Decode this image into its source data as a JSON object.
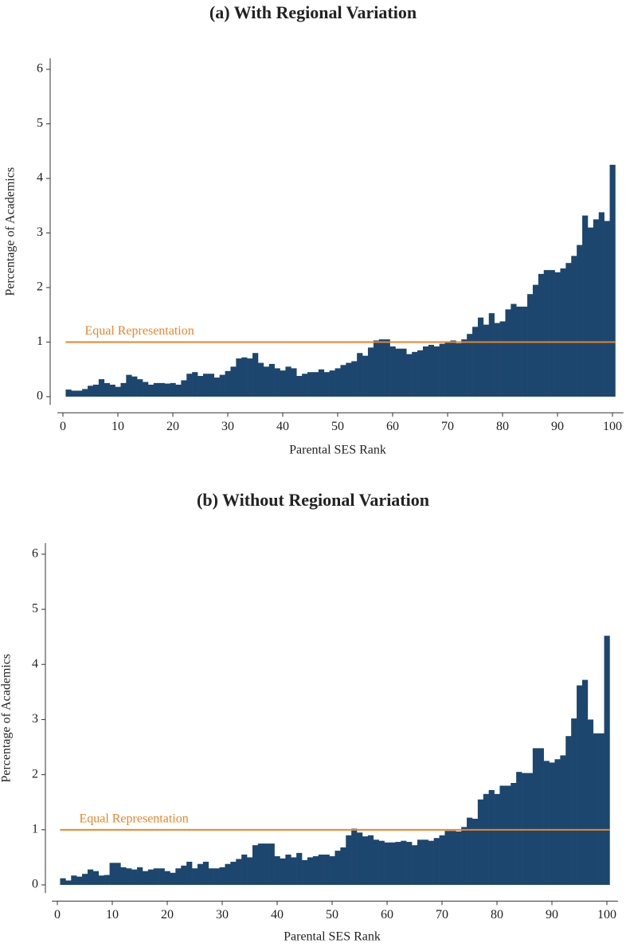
{
  "chart_data": [
    {
      "type": "bar",
      "title": "(a) With Regional Variation",
      "x_label": "Parental SES Rank",
      "y_label": "Percentage of Academics",
      "color": "#1d466e",
      "x": [
        1,
        2,
        3,
        4,
        5,
        6,
        7,
        8,
        9,
        10,
        11,
        12,
        13,
        14,
        15,
        16,
        17,
        18,
        19,
        20,
        21,
        22,
        23,
        24,
        25,
        26,
        27,
        28,
        29,
        30,
        31,
        32,
        33,
        34,
        35,
        36,
        37,
        38,
        39,
        40,
        41,
        42,
        43,
        44,
        45,
        46,
        47,
        48,
        49,
        50,
        51,
        52,
        53,
        54,
        55,
        56,
        57,
        58,
        59,
        60,
        61,
        62,
        63,
        64,
        65,
        66,
        67,
        68,
        69,
        70,
        71,
        72,
        73,
        74,
        75,
        76,
        77,
        78,
        79,
        80,
        81,
        82,
        83,
        84,
        85,
        86,
        87,
        88,
        89,
        90,
        91,
        92,
        93,
        94,
        95,
        96,
        97,
        98,
        99,
        100
      ],
      "values": [
        0.13,
        0.11,
        0.11,
        0.14,
        0.2,
        0.22,
        0.32,
        0.25,
        0.22,
        0.18,
        0.25,
        0.4,
        0.37,
        0.32,
        0.27,
        0.22,
        0.25,
        0.25,
        0.24,
        0.25,
        0.22,
        0.3,
        0.42,
        0.45,
        0.38,
        0.42,
        0.42,
        0.35,
        0.4,
        0.47,
        0.55,
        0.7,
        0.72,
        0.7,
        0.8,
        0.62,
        0.55,
        0.6,
        0.52,
        0.48,
        0.55,
        0.52,
        0.38,
        0.42,
        0.45,
        0.45,
        0.5,
        0.45,
        0.48,
        0.52,
        0.58,
        0.62,
        0.65,
        0.8,
        0.75,
        0.9,
        1.03,
        1.05,
        1.05,
        0.92,
        0.88,
        0.88,
        0.78,
        0.82,
        0.85,
        0.92,
        0.95,
        0.92,
        0.97,
        1.0,
        1.03,
        0.98,
        1.05,
        1.15,
        1.28,
        1.45,
        1.32,
        1.53,
        1.35,
        1.38,
        1.6,
        1.7,
        1.65,
        1.65,
        1.88,
        2.05,
        2.25,
        2.32,
        2.32,
        2.28,
        2.35,
        2.45,
        2.58,
        2.78,
        3.32,
        3.1,
        3.25,
        3.38,
        3.22,
        4.25
      ],
      "reference_line": {
        "value": 1,
        "label": "Equal Representation",
        "color": "#e8862a"
      },
      "xlim": [
        -1,
        102
      ],
      "xticks": [
        0,
        10,
        20,
        30,
        40,
        50,
        60,
        70,
        80,
        90,
        100
      ],
      "ylim": [
        -0.15,
        6.2
      ],
      "yticks": [
        0,
        1,
        2,
        3,
        4,
        5,
        6
      ]
    },
    {
      "type": "bar",
      "title": "(b) Without Regional Variation",
      "x_label": "Parental SES Rank",
      "y_label": "Percentage of Academics",
      "color": "#1d466e",
      "x": [
        1,
        2,
        3,
        4,
        5,
        6,
        7,
        8,
        9,
        10,
        11,
        12,
        13,
        14,
        15,
        16,
        17,
        18,
        19,
        20,
        21,
        22,
        23,
        24,
        25,
        26,
        27,
        28,
        29,
        30,
        31,
        32,
        33,
        34,
        35,
        36,
        37,
        38,
        39,
        40,
        41,
        42,
        43,
        44,
        45,
        46,
        47,
        48,
        49,
        50,
        51,
        52,
        53,
        54,
        55,
        56,
        57,
        58,
        59,
        60,
        61,
        62,
        63,
        64,
        65,
        66,
        67,
        68,
        69,
        70,
        71,
        72,
        73,
        74,
        75,
        76,
        77,
        78,
        79,
        80,
        81,
        82,
        83,
        84,
        85,
        86,
        87,
        88,
        89,
        90,
        91,
        92,
        93,
        94,
        95,
        96,
        97,
        98,
        99,
        100
      ],
      "values": [
        0.12,
        0.08,
        0.17,
        0.15,
        0.2,
        0.28,
        0.25,
        0.17,
        0.18,
        0.4,
        0.4,
        0.32,
        0.3,
        0.28,
        0.32,
        0.25,
        0.28,
        0.3,
        0.3,
        0.25,
        0.22,
        0.3,
        0.35,
        0.42,
        0.3,
        0.38,
        0.42,
        0.3,
        0.3,
        0.32,
        0.38,
        0.42,
        0.47,
        0.55,
        0.5,
        0.72,
        0.75,
        0.75,
        0.75,
        0.52,
        0.48,
        0.55,
        0.5,
        0.58,
        0.45,
        0.5,
        0.52,
        0.55,
        0.55,
        0.52,
        0.62,
        0.68,
        0.9,
        1.02,
        0.95,
        0.88,
        0.9,
        0.82,
        0.8,
        0.77,
        0.77,
        0.78,
        0.8,
        0.78,
        0.72,
        0.82,
        0.82,
        0.8,
        0.85,
        0.9,
        0.98,
        0.98,
        0.97,
        1.05,
        1.22,
        1.2,
        1.55,
        1.65,
        1.72,
        1.65,
        1.8,
        1.8,
        1.85,
        2.05,
        2.03,
        2.03,
        2.48,
        2.48,
        2.25,
        2.22,
        2.28,
        2.35,
        2.7,
        3.02,
        3.62,
        3.72,
        3.0,
        2.75,
        2.75,
        4.52
      ],
      "reference_line": {
        "value": 1,
        "label": "Equal Representation",
        "color": "#e8862a"
      },
      "xlim": [
        -1,
        102
      ],
      "xticks": [
        0,
        10,
        20,
        30,
        40,
        50,
        60,
        70,
        80,
        90,
        100
      ],
      "ylim": [
        -0.15,
        6.2
      ],
      "yticks": [
        0,
        1,
        2,
        3,
        4,
        5,
        6
      ]
    }
  ]
}
